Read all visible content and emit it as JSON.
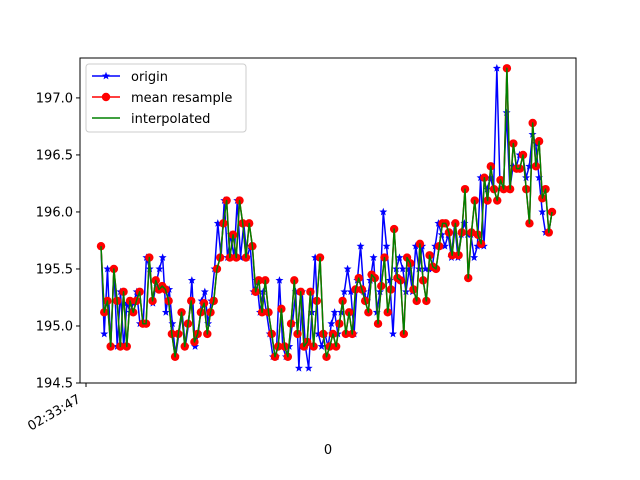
{
  "chart_data": {
    "type": "line",
    "xlabel": "0",
    "x_tick_labels": [
      "02:33:47"
    ],
    "ylabel": "",
    "title": "",
    "ylim": [
      194.5,
      197.35
    ],
    "y_ticks": [
      194.5,
      195.0,
      195.5,
      196.0,
      196.5,
      197.0
    ],
    "y_tick_labels": [
      "194.5",
      "195.0",
      "195.5",
      "196.0",
      "196.5",
      "197.0"
    ],
    "grid": false,
    "legend_position": "upper-left",
    "series": [
      {
        "name": "origin",
        "color": "#0000ff",
        "marker": "star",
        "values": [
          195.7,
          194.93,
          195.5,
          194.82,
          195.5,
          194.82,
          195.3,
          194.82,
          195.2,
          195.12,
          195.2,
          195.3,
          195.02,
          195.02,
          195.6,
          195.5,
          195.2,
          195.38,
          195.5,
          195.6,
          195.12,
          195.32,
          195.02,
          194.73,
          194.93,
          195.12,
          194.82,
          195.02,
          195.4,
          194.82,
          194.93,
          195.22,
          195.3,
          195.02,
          195.22,
          195.5,
          195.9,
          195.6,
          196.1,
          195.6,
          195.8,
          195.6,
          196.1,
          195.6,
          195.9,
          195.6,
          195.7,
          195.3,
          195.4,
          195.12,
          195.3,
          195.12,
          194.93,
          194.73,
          194.73,
          195.4,
          194.82,
          194.73,
          194.82,
          195.02,
          195.3,
          194.63,
          195.3,
          194.82,
          194.63,
          195.12,
          195.6,
          194.93,
          194.82,
          194.93,
          194.82,
          195.02,
          195.12,
          194.93,
          195.12,
          195.3,
          195.5,
          195.3,
          194.93,
          195.4,
          195.7,
          195.3,
          195.22,
          195.4,
          195.6,
          195.12,
          195.3,
          196.0,
          195.7,
          195.4,
          194.93,
          195.5,
          195.6,
          195.5,
          195.3,
          195.5,
          195.3,
          195.7,
          195.5,
          195.7,
          195.5,
          195.5,
          195.5,
          195.7,
          195.9,
          195.8,
          195.7,
          195.8,
          195.6,
          195.9,
          195.6,
          195.8,
          195.9,
          195.8,
          195.8,
          195.6,
          195.7,
          196.3,
          195.7,
          196.2,
          196.3,
          196.2,
          197.26,
          196.2,
          196.2,
          196.87,
          196.2,
          196.4,
          196.4,
          196.5,
          196.5,
          196.3,
          196.4,
          196.68,
          196.6,
          196.3,
          196.0,
          195.82,
          195.82,
          196.0
        ]
      },
      {
        "name": "mean resample",
        "color": "#ff0000",
        "marker": "circle",
        "values": [
          195.7,
          195.12,
          195.22,
          194.82,
          195.5,
          195.22,
          194.82,
          195.3,
          194.82,
          195.22,
          195.12,
          195.22,
          195.3,
          195.02,
          195.02,
          195.6,
          195.22,
          195.4,
          195.32,
          195.35,
          195.32,
          195.22,
          194.93,
          194.73,
          194.93,
          195.12,
          194.82,
          195.02,
          195.22,
          194.86,
          194.93,
          195.12,
          195.2,
          194.93,
          195.12,
          195.22,
          195.5,
          195.6,
          195.9,
          196.1,
          195.6,
          195.8,
          195.6,
          196.1,
          195.9,
          195.6,
          195.9,
          195.7,
          195.3,
          195.4,
          195.12,
          195.4,
          195.12,
          194.93,
          194.73,
          194.82,
          195.15,
          194.82,
          194.73,
          195.02,
          195.4,
          194.93,
          195.3,
          194.82,
          194.86,
          195.3,
          194.82,
          195.22,
          195.6,
          194.93,
          194.73,
          194.82,
          194.93,
          194.82,
          195.02,
          195.22,
          194.93,
          195.12,
          194.93,
          195.32,
          195.42,
          195.32,
          195.22,
          195.12,
          195.45,
          195.42,
          195.02,
          195.35,
          195.6,
          195.12,
          195.32,
          195.85,
          195.42,
          195.4,
          194.93,
          195.6,
          195.55,
          195.32,
          195.22,
          195.72,
          195.4,
          195.22,
          195.62,
          195.52,
          195.5,
          195.7,
          195.9,
          195.9,
          195.82,
          195.62,
          195.9,
          195.62,
          195.82,
          196.2,
          195.42,
          195.82,
          196.1,
          195.8,
          195.72,
          196.3,
          196.1,
          196.4,
          196.2,
          196.1,
          196.28,
          196.2,
          197.26,
          196.2,
          196.6,
          196.38,
          196.38,
          196.5,
          196.2,
          195.9,
          196.78,
          196.4,
          196.62,
          196.12,
          196.2,
          195.82,
          196.0
        ]
      },
      {
        "name": "interpolated",
        "color": "#008000",
        "marker": "none",
        "values": [
          195.7,
          195.12,
          195.22,
          194.82,
          195.5,
          195.22,
          194.82,
          195.3,
          194.82,
          195.22,
          195.12,
          195.22,
          195.3,
          195.02,
          195.02,
          195.6,
          195.22,
          195.4,
          195.32,
          195.35,
          195.32,
          195.22,
          194.93,
          194.73,
          194.93,
          195.12,
          194.82,
          195.02,
          195.22,
          194.86,
          194.93,
          195.12,
          195.2,
          194.93,
          195.12,
          195.22,
          195.5,
          195.6,
          195.9,
          196.1,
          195.6,
          195.8,
          195.6,
          196.1,
          195.9,
          195.6,
          195.9,
          195.7,
          195.3,
          195.4,
          195.12,
          195.4,
          195.12,
          194.93,
          194.73,
          194.82,
          195.15,
          194.82,
          194.73,
          195.02,
          195.4,
          194.93,
          195.3,
          194.82,
          194.86,
          195.3,
          194.82,
          195.22,
          195.6,
          194.93,
          194.73,
          194.82,
          194.93,
          194.82,
          195.02,
          195.22,
          194.93,
          195.12,
          194.93,
          195.32,
          195.42,
          195.32,
          195.22,
          195.12,
          195.45,
          195.42,
          195.02,
          195.35,
          195.6,
          195.12,
          195.32,
          195.85,
          195.42,
          195.4,
          194.93,
          195.6,
          195.55,
          195.32,
          195.22,
          195.72,
          195.4,
          195.22,
          195.62,
          195.52,
          195.5,
          195.7,
          195.9,
          195.9,
          195.82,
          195.62,
          195.9,
          195.62,
          195.82,
          196.2,
          195.42,
          195.82,
          196.1,
          195.8,
          195.72,
          196.3,
          196.1,
          196.4,
          196.2,
          196.1,
          196.28,
          196.2,
          197.26,
          196.2,
          196.6,
          196.38,
          196.38,
          196.5,
          196.2,
          195.9,
          196.78,
          196.4,
          196.62,
          196.12,
          196.2,
          195.82,
          196.0
        ]
      }
    ]
  }
}
